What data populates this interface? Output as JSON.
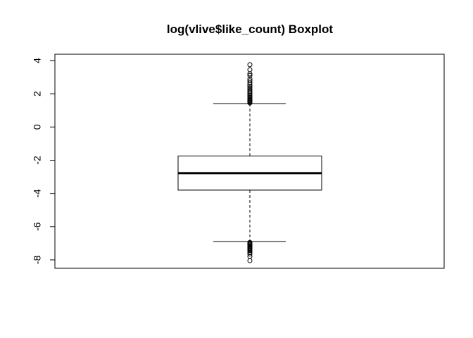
{
  "chart_data": {
    "type": "boxplot",
    "title": "log(vlive$like_count) Boxplot",
    "xlabel": "",
    "ylabel": "",
    "ylim": [
      -8.5,
      4.3
    ],
    "yticks": [
      4,
      2,
      0,
      -2,
      -4,
      -6,
      -8
    ],
    "ytick_labels": [
      "4",
      "2",
      "0",
      "-2",
      "-4",
      "-6",
      "-8"
    ],
    "grid": false,
    "legend": "none",
    "box": {
      "whisker_high": 1.4,
      "q3": -1.75,
      "median": -2.78,
      "q1": -3.8,
      "whisker_low": -6.9
    },
    "outliers_high": [
      1.45,
      1.5,
      1.55,
      1.6,
      1.65,
      1.7,
      1.78,
      1.85,
      1.93,
      2.0,
      2.08,
      2.15,
      2.25,
      2.35,
      2.45,
      2.55,
      2.65,
      2.78,
      2.9,
      3.1,
      3.2,
      3.45,
      3.75
    ],
    "outliers_low": [
      -6.95,
      -7.0,
      -7.05,
      -7.1,
      -7.15,
      -7.2,
      -7.25,
      -7.3,
      -7.35,
      -7.4,
      -7.45,
      -7.55,
      -7.65,
      -7.8,
      -8.05
    ],
    "colors": {
      "stroke": "#000000",
      "background": "#ffffff"
    }
  }
}
